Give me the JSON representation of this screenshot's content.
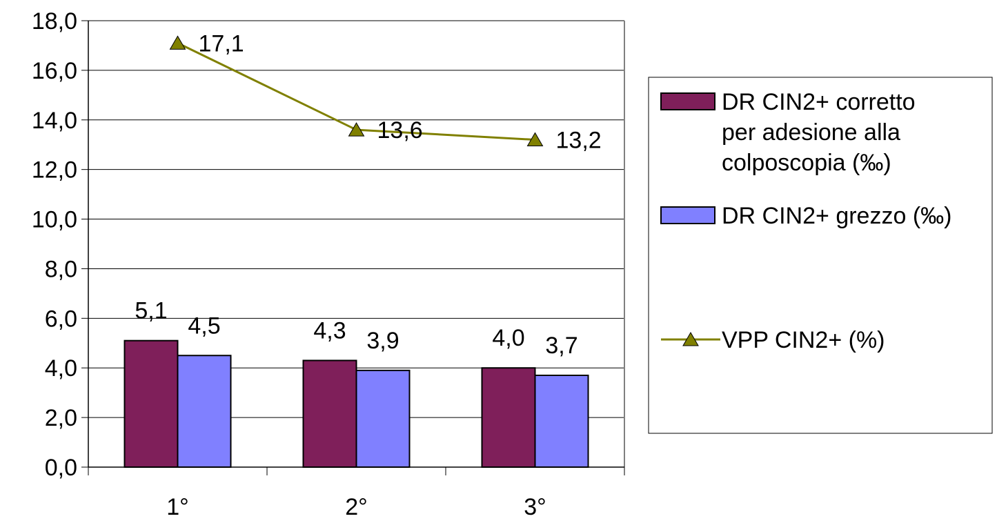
{
  "chart_data": {
    "type": "bar",
    "categories": [
      "1°",
      "2°",
      "3°"
    ],
    "ylim": [
      0,
      18
    ],
    "y_ticks": [
      "0,0",
      "2,0",
      "4,0",
      "6,0",
      "8,0",
      "10,0",
      "12,0",
      "14,0",
      "16,0",
      "18,0"
    ],
    "grid": true,
    "legend_position": "right",
    "series": [
      {
        "name": "DR CIN2+ corretto per adesione alla colposcopia (‰)",
        "legend_lines": [
          "DR CIN2+ corretto",
          "per adesione alla",
          "colposcopia (‰)"
        ],
        "kind": "bar",
        "color": "#7f1f5a",
        "values": [
          5.1,
          4.3,
          4.0
        ],
        "labels": [
          "5,1",
          "4,3",
          "4,0"
        ]
      },
      {
        "name": "DR CIN2+ grezzo (‰)",
        "legend_lines": [
          "DR CIN2+ grezzo (‰)"
        ],
        "kind": "bar",
        "color": "#8080ff",
        "values": [
          4.5,
          3.9,
          3.7
        ],
        "labels": [
          "4,5",
          "3,9",
          "3,7"
        ]
      },
      {
        "name": "VPP CIN2+ (%)",
        "legend_lines": [
          "VPP CIN2+ (%)"
        ],
        "kind": "line",
        "color": "#808000",
        "values": [
          17.1,
          13.6,
          13.2
        ],
        "labels": [
          "17,1",
          "13,6",
          "13,2"
        ]
      }
    ]
  }
}
